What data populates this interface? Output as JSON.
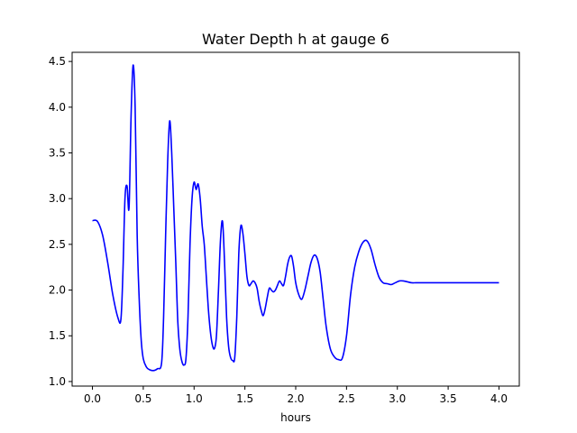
{
  "chart_data": {
    "type": "line",
    "title": "Water Depth h at gauge 6",
    "xlabel": "hours",
    "ylabel": "",
    "xlim": [
      -0.2,
      4.2
    ],
    "ylim": [
      0.95,
      4.6
    ],
    "xticks": [
      0.0,
      0.5,
      1.0,
      1.5,
      2.0,
      2.5,
      3.0,
      3.5,
      4.0
    ],
    "xtick_labels": [
      "0.0",
      "0.5",
      "1.0",
      "1.5",
      "2.0",
      "2.5",
      "3.0",
      "3.5",
      "4.0"
    ],
    "yticks": [
      1.0,
      1.5,
      2.0,
      2.5,
      3.0,
      3.5,
      4.0,
      4.5
    ],
    "ytick_labels": [
      "1.0",
      "1.5",
      "2.0",
      "2.5",
      "3.0",
      "3.5",
      "4.0",
      "4.5"
    ],
    "grid": false,
    "series": [
      {
        "color": "#0000ff",
        "x": [
          0.0,
          0.05,
          0.1,
          0.15,
          0.2,
          0.25,
          0.28,
          0.3,
          0.32,
          0.34,
          0.36,
          0.38,
          0.4,
          0.42,
          0.44,
          0.46,
          0.48,
          0.5,
          0.53,
          0.56,
          0.6,
          0.64,
          0.68,
          0.7,
          0.72,
          0.74,
          0.76,
          0.78,
          0.8,
          0.82,
          0.84,
          0.86,
          0.88,
          0.9,
          0.92,
          0.94,
          0.96,
          0.98,
          1.0,
          1.02,
          1.04,
          1.06,
          1.08,
          1.1,
          1.12,
          1.14,
          1.16,
          1.18,
          1.2,
          1.22,
          1.24,
          1.26,
          1.28,
          1.3,
          1.32,
          1.34,
          1.36,
          1.38,
          1.4,
          1.42,
          1.44,
          1.46,
          1.48,
          1.5,
          1.52,
          1.54,
          1.56,
          1.58,
          1.6,
          1.62,
          1.64,
          1.66,
          1.68,
          1.7,
          1.72,
          1.74,
          1.76,
          1.78,
          1.8,
          1.82,
          1.84,
          1.86,
          1.88,
          1.9,
          1.92,
          1.94,
          1.96,
          1.98,
          2.0,
          2.03,
          2.06,
          2.09,
          2.12,
          2.15,
          2.18,
          2.21,
          2.24,
          2.27,
          2.3,
          2.34,
          2.38,
          2.42,
          2.46,
          2.5,
          2.54,
          2.58,
          2.62,
          2.66,
          2.7,
          2.74,
          2.78,
          2.82,
          2.86,
          2.9,
          2.94,
          2.98,
          3.02,
          3.06,
          3.1,
          3.14,
          3.18,
          3.22,
          3.26,
          3.3,
          3.34,
          3.38,
          3.42,
          3.46,
          3.5,
          3.54,
          3.58,
          3.62,
          3.66,
          3.7,
          3.74,
          3.78,
          3.82,
          3.86,
          3.9,
          3.94,
          3.97,
          4.0
        ],
        "y": [
          2.76,
          2.75,
          2.6,
          2.3,
          1.95,
          1.7,
          1.68,
          2.2,
          3.0,
          3.14,
          2.9,
          3.9,
          4.46,
          4.0,
          2.6,
          1.9,
          1.45,
          1.25,
          1.16,
          1.13,
          1.12,
          1.14,
          1.2,
          1.7,
          2.6,
          3.4,
          3.85,
          3.5,
          2.9,
          2.3,
          1.65,
          1.35,
          1.22,
          1.18,
          1.25,
          1.7,
          2.5,
          3.0,
          3.18,
          3.1,
          3.16,
          3.0,
          2.7,
          2.5,
          2.15,
          1.8,
          1.55,
          1.4,
          1.36,
          1.5,
          2.0,
          2.55,
          2.75,
          2.3,
          1.7,
          1.38,
          1.26,
          1.23,
          1.26,
          1.7,
          2.4,
          2.7,
          2.62,
          2.4,
          2.15,
          2.05,
          2.07,
          2.1,
          2.08,
          2.02,
          1.88,
          1.78,
          1.72,
          1.8,
          1.92,
          2.02,
          2.0,
          1.98,
          2.0,
          2.05,
          2.1,
          2.07,
          2.05,
          2.15,
          2.28,
          2.36,
          2.37,
          2.25,
          2.08,
          1.95,
          1.9,
          2.0,
          2.15,
          2.3,
          2.38,
          2.35,
          2.2,
          1.9,
          1.6,
          1.36,
          1.27,
          1.24,
          1.26,
          1.5,
          1.95,
          2.25,
          2.42,
          2.52,
          2.54,
          2.45,
          2.28,
          2.14,
          2.08,
          2.07,
          2.06,
          2.08,
          2.1,
          2.1,
          2.09,
          2.08,
          2.08,
          2.08,
          2.08,
          2.08,
          2.08,
          2.08,
          2.08,
          2.08,
          2.08,
          2.08,
          2.08,
          2.08,
          2.08,
          2.08,
          2.08,
          2.08,
          2.08,
          2.08,
          2.08,
          2.08,
          2.08,
          2.08
        ]
      }
    ]
  }
}
